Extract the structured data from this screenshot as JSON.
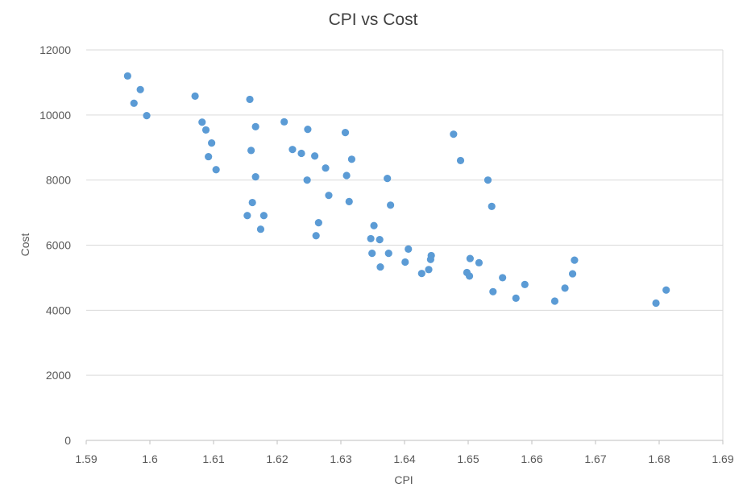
{
  "chart_data": {
    "type": "scatter",
    "title": "CPI vs Cost",
    "xlabel": "CPI",
    "ylabel": "Cost",
    "xlim": [
      1.59,
      1.69
    ],
    "ylim": [
      0,
      12000
    ],
    "x_ticks": [
      "1.59",
      "1.6",
      "1.61",
      "1.62",
      "1.63",
      "1.64",
      "1.65",
      "1.66",
      "1.67",
      "1.68",
      "1.69"
    ],
    "y_ticks": [
      "0",
      "2000",
      "4000",
      "6000",
      "8000",
      "10000",
      "12000"
    ],
    "grid": "horizontal",
    "legend": "none",
    "series": [
      {
        "color": "#5b9bd5",
        "points": [
          [
            1.5965,
            11200
          ],
          [
            1.5985,
            10780
          ],
          [
            1.5975,
            10360
          ],
          [
            1.5995,
            9980
          ],
          [
            1.6071,
            10580
          ],
          [
            1.6082,
            9780
          ],
          [
            1.6088,
            9540
          ],
          [
            1.6097,
            9140
          ],
          [
            1.6092,
            8720
          ],
          [
            1.6104,
            8320
          ],
          [
            1.6157,
            10480
          ],
          [
            1.6166,
            9640
          ],
          [
            1.6159,
            8910
          ],
          [
            1.6166,
            8100
          ],
          [
            1.6161,
            7310
          ],
          [
            1.6153,
            6910
          ],
          [
            1.6179,
            6910
          ],
          [
            1.6174,
            6490
          ],
          [
            1.6211,
            9790
          ],
          [
            1.6248,
            9560
          ],
          [
            1.6224,
            8940
          ],
          [
            1.6238,
            8820
          ],
          [
            1.6259,
            8740
          ],
          [
            1.6276,
            8370
          ],
          [
            1.6247,
            8000
          ],
          [
            1.6281,
            7530
          ],
          [
            1.6265,
            6690
          ],
          [
            1.6261,
            6290
          ],
          [
            1.6307,
            9460
          ],
          [
            1.6317,
            8640
          ],
          [
            1.6309,
            8140
          ],
          [
            1.6313,
            7340
          ],
          [
            1.6373,
            8050
          ],
          [
            1.6378,
            7230
          ],
          [
            1.6352,
            6600
          ],
          [
            1.6347,
            6200
          ],
          [
            1.6361,
            6170
          ],
          [
            1.6349,
            5750
          ],
          [
            1.6375,
            5750
          ],
          [
            1.6362,
            5330
          ],
          [
            1.6406,
            5880
          ],
          [
            1.6401,
            5480
          ],
          [
            1.6427,
            5130
          ],
          [
            1.6438,
            5250
          ],
          [
            1.6441,
            5560
          ],
          [
            1.6442,
            5680
          ],
          [
            1.6477,
            9410
          ],
          [
            1.6488,
            8600
          ],
          [
            1.6531,
            8000
          ],
          [
            1.6537,
            7190
          ],
          [
            1.6503,
            5590
          ],
          [
            1.6517,
            5460
          ],
          [
            1.6498,
            5160
          ],
          [
            1.6502,
            5050
          ],
          [
            1.6554,
            5000
          ],
          [
            1.6539,
            4570
          ],
          [
            1.6589,
            4790
          ],
          [
            1.6575,
            4370
          ],
          [
            1.6636,
            4280
          ],
          [
            1.6652,
            4680
          ],
          [
            1.6664,
            5120
          ],
          [
            1.6667,
            5540
          ],
          [
            1.6795,
            4220
          ],
          [
            1.6811,
            4620
          ]
        ]
      }
    ]
  }
}
